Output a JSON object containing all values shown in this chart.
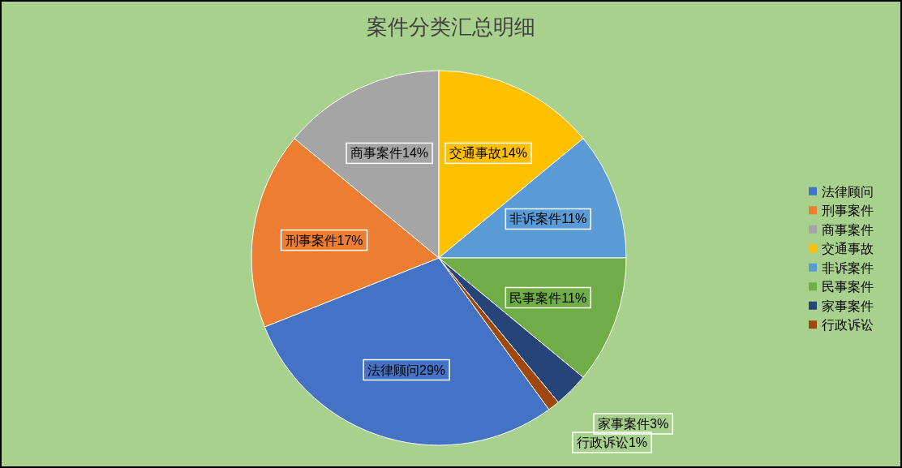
{
  "chart_data": {
    "type": "pie",
    "title": "案件分类汇总明细",
    "categories": [
      "法律顾问",
      "刑事案件",
      "商事案件",
      "交通事故",
      "非诉案件",
      "民事案件",
      "家事案件",
      "行政诉讼"
    ],
    "values": [
      29,
      17,
      14,
      14,
      11,
      11,
      3,
      1
    ],
    "value_labels": [
      "29%",
      "17%",
      "14%",
      "14%",
      "11%",
      "11%",
      "3%",
      "1%"
    ],
    "colors": [
      "#4472c4",
      "#ed7d31",
      "#a5a5a5",
      "#ffc000",
      "#5b9bd5",
      "#70ad47",
      "#264478",
      "#9e480e"
    ],
    "legend": "right"
  }
}
